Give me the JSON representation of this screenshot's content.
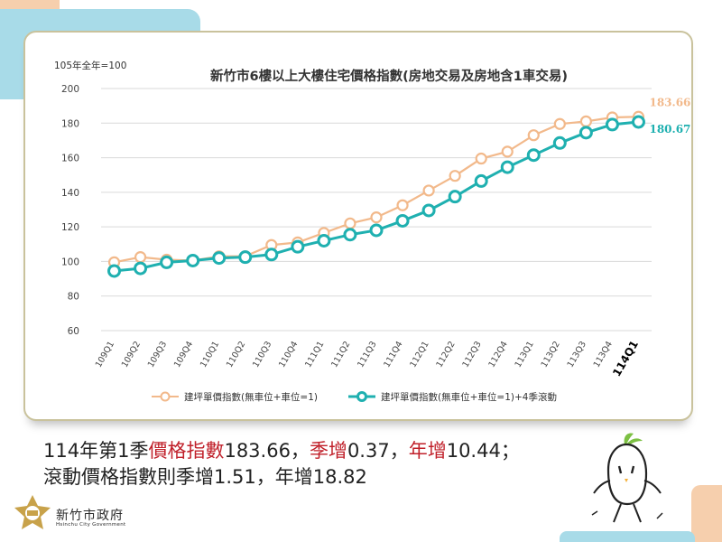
{
  "chart_data": {
    "type": "line",
    "title": "新竹市6樓以上大樓住宅價格指數(房地交易及房地含1車交易)",
    "unit_label": "105年全年=100",
    "ylim": [
      60,
      200
    ],
    "yticks": [
      60,
      80,
      100,
      120,
      140,
      160,
      180,
      200
    ],
    "grid": true,
    "legend_position": "bottom",
    "categories": [
      "109Q1",
      "109Q2",
      "109Q3",
      "109Q4",
      "110Q1",
      "110Q2",
      "110Q3",
      "110Q4",
      "111Q1",
      "111Q2",
      "111Q3",
      "111Q4",
      "112Q1",
      "112Q2",
      "112Q3",
      "112Q4",
      "113Q1",
      "113Q2",
      "113Q3",
      "113Q4",
      "114Q1"
    ],
    "series": [
      {
        "name": "建坪單價指數(無車位+車位=1)",
        "color": "#f2b98b",
        "values": [
          99.5,
          102.5,
          101,
          100.5,
          103,
          103,
          109.5,
          111,
          116.5,
          122,
          125.5,
          132.5,
          141,
          149.5,
          159.5,
          163.5,
          173,
          179.5,
          181,
          183.29,
          183.66
        ],
        "end_label": "183.66"
      },
      {
        "name": "建坪單價指數(無車位+車位=1)+4季滾動",
        "color": "#1fb0b0",
        "values": [
          94.5,
          96,
          99.5,
          100.5,
          102,
          102.5,
          104,
          108.5,
          112,
          115.5,
          118,
          123.5,
          129.5,
          137.5,
          146.5,
          154.5,
          161.5,
          168.5,
          174.5,
          179.16,
          180.67
        ],
        "end_label": "180.67"
      }
    ]
  },
  "caption": {
    "line1": {
      "prefix": "114年第1季",
      "hl1": "價格指數",
      "mid1": "183.66，",
      "hl2": "季增",
      "mid2": "0.37，",
      "hl3": "年增",
      "end": "10.44；"
    },
    "line2": "滾動價格指數則季增1.51，年增18.82"
  },
  "logo": {
    "name": "新竹市政府",
    "english": "Hsinchu City Government"
  },
  "colors": {
    "accent_orange": "#f2b98b",
    "accent_teal": "#1fb0b0",
    "highlight_red": "#c0202a",
    "deco_blue": "#a8dbe8",
    "deco_peach": "#f6cfad"
  }
}
